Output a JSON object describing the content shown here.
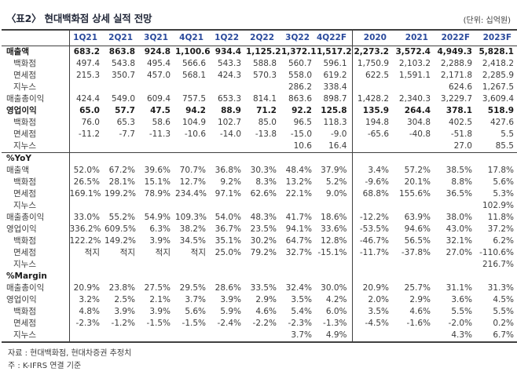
{
  "title": "〈표2〉 현대백화점 상세 실적 전망",
  "unit_label": "(단위: 십억원)",
  "footnotes": {
    "source": "자료 : 현대백화점, 현대차증권 추정치",
    "basis": "주 : K-IFRS 연결 기준"
  },
  "table": {
    "columns": [
      "1Q21",
      "2Q21",
      "3Q21",
      "4Q21",
      "1Q22",
      "2Q22",
      "3Q22",
      "4Q22F",
      "2020",
      "2021",
      "2022F",
      "2023F"
    ],
    "rows": [
      {
        "label": "매출액",
        "bold": true,
        "indent": 0,
        "cells": [
          "683.2",
          "863.8",
          "924.8",
          "1,100.6",
          "934.4",
          "1,125.2",
          "1,372.1",
          "1,517.2",
          "2,273.2",
          "3,572.4",
          "4,949.3",
          "5,828.1"
        ]
      },
      {
        "label": "백화점",
        "indent": 1,
        "cells": [
          "497.4",
          "543.8",
          "495.4",
          "566.6",
          "543.3",
          "588.8",
          "560.7",
          "596.1",
          "1,750.9",
          "2,103.2",
          "2,288.9",
          "2,418.2"
        ]
      },
      {
        "label": "면세점",
        "indent": 1,
        "cells": [
          "215.3",
          "350.7",
          "457.0",
          "568.1",
          "424.3",
          "570.3",
          "558.0",
          "619.2",
          "622.5",
          "1,591.1",
          "2,171.8",
          "2,285.9"
        ]
      },
      {
        "label": "지누스",
        "indent": 1,
        "cells": [
          "",
          "",
          "",
          "",
          "",
          "",
          "286.2",
          "338.4",
          "",
          "",
          "624.6",
          "1,267.5"
        ]
      },
      {
        "label": "매출총이익",
        "indent": 0,
        "cells": [
          "424.4",
          "549.0",
          "609.4",
          "757.5",
          "653.3",
          "814.1",
          "863.6",
          "898.7",
          "1,428.2",
          "2,340.3",
          "3,229.7",
          "3,609.4"
        ]
      },
      {
        "label": "영업이익",
        "bold": true,
        "indent": 0,
        "cells": [
          "65.0",
          "57.7",
          "47.5",
          "94.2",
          "88.9",
          "71.2",
          "92.2",
          "125.8",
          "135.9",
          "264.4",
          "378.1",
          "518.9"
        ]
      },
      {
        "label": "백화점",
        "indent": 1,
        "cells": [
          "76.0",
          "65.3",
          "58.6",
          "104.9",
          "102.7",
          "85.0",
          "96.5",
          "118.3",
          "194.8",
          "304.8",
          "402.5",
          "427.6"
        ]
      },
      {
        "label": "면세점",
        "indent": 1,
        "cells": [
          "-11.2",
          "-7.7",
          "-11.3",
          "-10.6",
          "-14.0",
          "-13.8",
          "-15.0",
          "-9.0",
          "-65.6",
          "-40.8",
          "-51.8",
          "5.5"
        ]
      },
      {
        "label": "지누스",
        "indent": 1,
        "cells": [
          "",
          "",
          "",
          "",
          "",
          "",
          "10.6",
          "16.4",
          "",
          "",
          "27.0",
          "85.5"
        ]
      },
      {
        "label": "%YoY",
        "bold": true,
        "indent": 0,
        "section": true,
        "sep": true,
        "cells": [
          "",
          "",
          "",
          "",
          "",
          "",
          "",
          "",
          "",
          "",
          "",
          ""
        ]
      },
      {
        "label": "매출액",
        "indent": 0,
        "cells": [
          "52.0%",
          "67.2%",
          "39.6%",
          "70.7%",
          "36.8%",
          "30.3%",
          "48.4%",
          "37.9%",
          "3.4%",
          "57.2%",
          "38.5%",
          "17.8%"
        ]
      },
      {
        "label": "백화점",
        "indent": 1,
        "cells": [
          "26.5%",
          "28.1%",
          "15.1%",
          "12.7%",
          "9.2%",
          "8.3%",
          "13.2%",
          "5.2%",
          "-9.6%",
          "20.1%",
          "8.8%",
          "5.6%"
        ]
      },
      {
        "label": "면세점",
        "indent": 1,
        "cells": [
          "169.1%",
          "199.2%",
          "78.9%",
          "234.4%",
          "97.1%",
          "62.6%",
          "22.1%",
          "9.0%",
          "68.8%",
          "155.6%",
          "36.5%",
          "5.3%"
        ]
      },
      {
        "label": "지누스",
        "indent": 1,
        "cells": [
          "",
          "",
          "",
          "",
          "",
          "",
          "",
          "",
          "",
          "",
          "",
          "102.9%"
        ]
      },
      {
        "label": "매출총이익",
        "indent": 0,
        "cells": [
          "33.0%",
          "55.2%",
          "54.9%",
          "109.3%",
          "54.0%",
          "48.3%",
          "41.7%",
          "18.6%",
          "-12.2%",
          "63.9%",
          "38.0%",
          "11.8%"
        ]
      },
      {
        "label": "영업이익",
        "indent": 0,
        "cells": [
          "336.2%",
          "609.5%",
          "6.3%",
          "38.2%",
          "36.7%",
          "23.5%",
          "94.1%",
          "33.6%",
          "-53.5%",
          "94.6%",
          "43.0%",
          "37.2%"
        ]
      },
      {
        "label": "백화점",
        "indent": 1,
        "cells": [
          "122.2%",
          "149.2%",
          "3.9%",
          "34.5%",
          "35.1%",
          "30.2%",
          "64.7%",
          "12.8%",
          "-46.7%",
          "56.5%",
          "32.1%",
          "6.2%"
        ]
      },
      {
        "label": "면세점",
        "indent": 1,
        "cells": [
          "적지",
          "적지",
          "적지",
          "적지",
          "25.0%",
          "79.2%",
          "32.7%",
          "-15.1%",
          "-11.7%",
          "-37.8%",
          "27.0%",
          "-110.6%"
        ]
      },
      {
        "label": "지누스",
        "indent": 1,
        "cells": [
          "",
          "",
          "",
          "",
          "",
          "",
          "",
          "",
          "",
          "",
          "",
          "216.7%"
        ]
      },
      {
        "label": "%Margin",
        "bold": true,
        "indent": 0,
        "section": true,
        "cells": [
          "",
          "",
          "",
          "",
          "",
          "",
          "",
          "",
          "",
          "",
          "",
          ""
        ]
      },
      {
        "label": "매출총이익",
        "indent": 0,
        "cells": [
          "20.9%",
          "23.8%",
          "27.5%",
          "29.5%",
          "28.6%",
          "33.5%",
          "32.4%",
          "30.0%",
          "20.9%",
          "25.7%",
          "31.1%",
          "31.3%"
        ]
      },
      {
        "label": "영업이익",
        "indent": 0,
        "cells": [
          "3.2%",
          "2.5%",
          "2.1%",
          "3.7%",
          "3.9%",
          "2.9%",
          "3.5%",
          "4.2%",
          "2.0%",
          "2.9%",
          "3.6%",
          "4.5%"
        ]
      },
      {
        "label": "백화점",
        "indent": 1,
        "cells": [
          "4.8%",
          "3.9%",
          "3.9%",
          "5.6%",
          "5.9%",
          "4.6%",
          "5.4%",
          "6.0%",
          "3.5%",
          "4.6%",
          "5.5%",
          "5.5%"
        ]
      },
      {
        "label": "면세점",
        "indent": 1,
        "cells": [
          "-2.3%",
          "-1.2%",
          "-1.5%",
          "-1.5%",
          "-2.4%",
          "-2.2%",
          "-2.3%",
          "-1.3%",
          "-4.5%",
          "-1.6%",
          "-2.0%",
          "0.2%"
        ]
      },
      {
        "label": "지누스",
        "indent": 1,
        "cells": [
          "",
          "",
          "",
          "",
          "",
          "",
          "3.7%",
          "4.9%",
          "",
          "",
          "4.3%",
          "6.7%"
        ]
      }
    ]
  }
}
